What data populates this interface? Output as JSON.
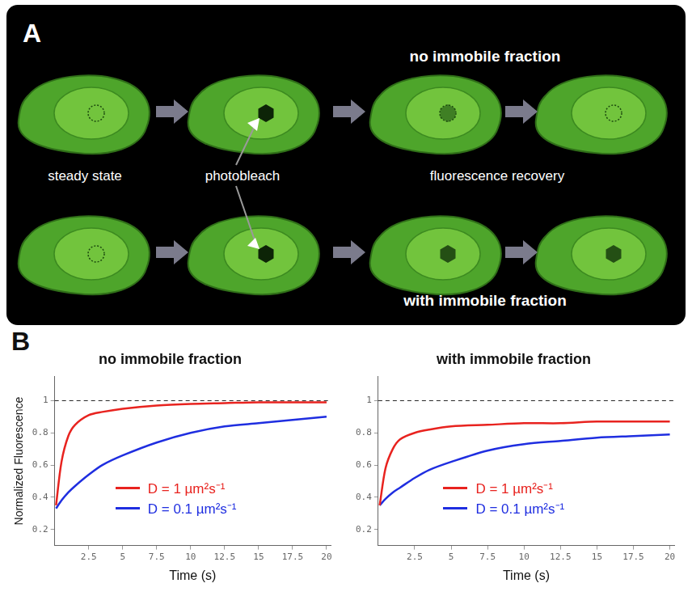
{
  "diagram": {
    "panel": "A",
    "rows": [
      {
        "label": "no immobile fraction"
      },
      {
        "label": "with immobile fraction"
      }
    ],
    "steps": [
      "steady state",
      "photobleach",
      "fluorescence recovery"
    ]
  },
  "chart_panel": "B",
  "chart_data": [
    {
      "type": "line",
      "title": "no immobile fraction",
      "x_label": "Time (s)",
      "y_label": "Normalized Fluorescence",
      "x": [
        0.1,
        0.5,
        1,
        1.5,
        2.5,
        3.5,
        5,
        7.5,
        10,
        12.5,
        15,
        17.5,
        20
      ],
      "series": [
        {
          "name": "D = 1 µm²s⁻¹",
          "color": "#e8231f",
          "values": [
            0.35,
            0.62,
            0.78,
            0.85,
            0.91,
            0.93,
            0.95,
            0.97,
            0.98,
            0.985,
            0.99,
            0.99,
            0.99
          ]
        },
        {
          "name": "D = 0.1 µm²s⁻¹",
          "color": "#1f2ee0",
          "values": [
            0.33,
            0.38,
            0.43,
            0.47,
            0.54,
            0.6,
            0.66,
            0.74,
            0.8,
            0.84,
            0.86,
            0.88,
            0.9
          ]
        }
      ],
      "xlim": [
        0,
        20.3
      ],
      "ylim": [
        0.1,
        1.15
      ],
      "xticks": [
        2.5,
        5,
        7.5,
        10,
        12.5,
        15,
        17.5,
        20
      ],
      "yticks": [
        0.2,
        0.4,
        0.6,
        0.8,
        1
      ],
      "reference_line": 1,
      "legend": "lower right",
      "grid": false
    },
    {
      "type": "line",
      "title": "with immobile fraction",
      "x_label": "Time (s)",
      "x": [
        0.1,
        0.5,
        1,
        1.5,
        2.5,
        3.5,
        5,
        7.5,
        10,
        12.5,
        15,
        17.5,
        20
      ],
      "series": [
        {
          "name": "D = 1 µm²s⁻¹",
          "color": "#e8231f",
          "values": [
            0.35,
            0.58,
            0.7,
            0.76,
            0.8,
            0.82,
            0.84,
            0.85,
            0.86,
            0.86,
            0.87,
            0.87,
            0.87
          ]
        },
        {
          "name": "D = 0.1 µm²s⁻¹",
          "color": "#1f2ee0",
          "values": [
            0.35,
            0.39,
            0.43,
            0.46,
            0.52,
            0.57,
            0.62,
            0.69,
            0.73,
            0.75,
            0.77,
            0.78,
            0.79
          ]
        }
      ],
      "xlim": [
        0,
        20.3
      ],
      "ylim": [
        0.1,
        1.15
      ],
      "xticks": [
        2.5,
        5,
        7.5,
        10,
        12.5,
        15,
        17.5,
        20
      ],
      "yticks": [
        0.2,
        0.4,
        0.6,
        0.8,
        1
      ],
      "reference_line": 1,
      "legend": "lower right",
      "grid": false
    }
  ]
}
